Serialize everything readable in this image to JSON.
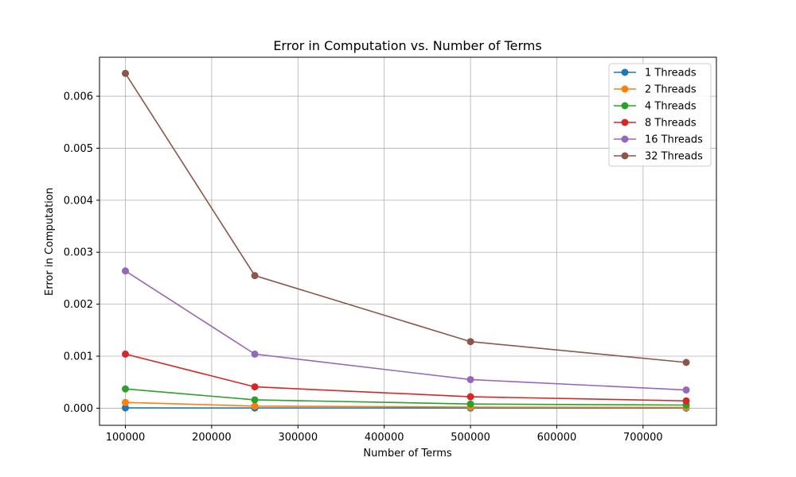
{
  "chart_data": {
    "type": "line",
    "title": "Error in Computation vs. Number of Terms",
    "xlabel": "Number of Terms",
    "ylabel": "Error in Computation",
    "x": [
      100000,
      250000,
      500000,
      750000
    ],
    "xlim": [
      70000,
      785000
    ],
    "ylim": [
      -0.00033,
      0.00675
    ],
    "xticks": [
      100000,
      200000,
      300000,
      400000,
      500000,
      600000,
      700000
    ],
    "xtick_labels": [
      "100000",
      "200000",
      "300000",
      "400000",
      "500000",
      "600000",
      "700000"
    ],
    "yticks": [
      0.0,
      0.001,
      0.002,
      0.003,
      0.004,
      0.005,
      0.006
    ],
    "ytick_labels": [
      "0.000",
      "0.001",
      "0.002",
      "0.003",
      "0.004",
      "0.005",
      "0.006"
    ],
    "grid": true,
    "legend_position": "top-right",
    "series": [
      {
        "name": "1 Threads",
        "color": "#1f77b4",
        "values": [
          5e-06,
          3e-06,
          2e-06,
          1e-06
        ]
      },
      {
        "name": "2 Threads",
        "color": "#ff7f0e",
        "values": [
          0.00011,
          4e-05,
          2e-05,
          1.5e-05
        ]
      },
      {
        "name": "4 Threads",
        "color": "#2ca02c",
        "values": [
          0.00037,
          0.00016,
          8e-05,
          6e-05
        ]
      },
      {
        "name": "8 Threads",
        "color": "#d62728",
        "values": [
          0.00104,
          0.00041,
          0.00022,
          0.00014
        ]
      },
      {
        "name": "16 Threads",
        "color": "#9467bd",
        "values": [
          0.00264,
          0.00104,
          0.00055,
          0.00035
        ]
      },
      {
        "name": "32 Threads",
        "color": "#8c564b",
        "values": [
          0.00644,
          0.00255,
          0.00128,
          0.00088
        ]
      }
    ]
  }
}
